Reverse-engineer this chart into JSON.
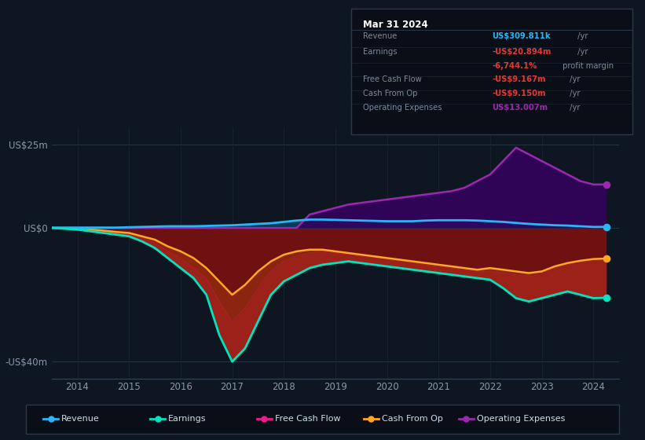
{
  "bg_color": "#0e1621",
  "ylim": [
    -45000000,
    30000000
  ],
  "xlim": [
    2013.5,
    2024.5
  ],
  "legend_items": [
    {
      "label": "Revenue",
      "color": "#29b6f6"
    },
    {
      "label": "Earnings",
      "color": "#00e5c0"
    },
    {
      "label": "Free Cash Flow",
      "color": "#e91e8c"
    },
    {
      "label": "Cash From Op",
      "color": "#ffa726"
    },
    {
      "label": "Operating Expenses",
      "color": "#9c27b0"
    }
  ],
  "info_title": "Mar 31 2024",
  "info_rows": [
    {
      "label": "Revenue",
      "value": "US$309.811k",
      "unit": " /yr",
      "value_color": "#29b6f6",
      "unit_color": "#aabbcc"
    },
    {
      "label": "Earnings",
      "value": "-US$20.894m",
      "unit": " /yr",
      "value_color": "#e53935",
      "unit_color": "#aabbcc"
    },
    {
      "label": "",
      "value": "-6,744.1%",
      "unit": " profit margin",
      "value_color": "#e53935",
      "unit_color": "#aabbcc"
    },
    {
      "label": "Free Cash Flow",
      "value": "-US$9.167m",
      "unit": " /yr",
      "value_color": "#e53935",
      "unit_color": "#aabbcc"
    },
    {
      "label": "Cash From Op",
      "value": "-US$9.150m",
      "unit": " /yr",
      "value_color": "#e53935",
      "unit_color": "#aabbcc"
    },
    {
      "label": "Operating Expenses",
      "value": "US$13.007m",
      "unit": " /yr",
      "value_color": "#9c27b0",
      "unit_color": "#aabbcc"
    }
  ],
  "ytick_vals": [
    25000000,
    0,
    -40000000
  ],
  "ytick_labels": [
    "US$25m",
    "US$0",
    "-US$40m"
  ],
  "xtick_vals": [
    2014,
    2015,
    2016,
    2017,
    2018,
    2019,
    2020,
    2021,
    2022,
    2023,
    2024
  ],
  "rev_color": "#29b6f6",
  "earn_color": "#00e5c0",
  "fcf_color": "#e91e8c",
  "cop_color": "#ffa726",
  "opex_color": "#9c27b0",
  "years": [
    2013.5,
    2014.0,
    2014.25,
    2014.5,
    2014.75,
    2015.0,
    2015.25,
    2015.5,
    2015.75,
    2016.0,
    2016.25,
    2016.5,
    2016.75,
    2017.0,
    2017.25,
    2017.5,
    2017.75,
    2018.0,
    2018.25,
    2018.5,
    2018.75,
    2019.0,
    2019.25,
    2019.5,
    2019.75,
    2020.0,
    2020.25,
    2020.5,
    2020.75,
    2021.0,
    2021.25,
    2021.5,
    2021.75,
    2022.0,
    2022.25,
    2022.5,
    2022.75,
    2023.0,
    2023.25,
    2023.5,
    2023.75,
    2024.0,
    2024.25
  ],
  "revenue": [
    0.1,
    0.1,
    0.1,
    0.1,
    0.1,
    0.2,
    0.3,
    0.4,
    0.5,
    0.5,
    0.5,
    0.6,
    0.7,
    0.8,
    1.0,
    1.2,
    1.4,
    1.8,
    2.2,
    2.5,
    2.5,
    2.4,
    2.3,
    2.2,
    2.1,
    2.0,
    2.0,
    2.0,
    2.2,
    2.3,
    2.3,
    2.3,
    2.2,
    2.0,
    1.8,
    1.5,
    1.2,
    1.0,
    0.8,
    0.7,
    0.5,
    0.3,
    0.31
  ],
  "earnings": [
    0,
    -0.5,
    -1.0,
    -1.5,
    -2.0,
    -2.5,
    -4.0,
    -6.0,
    -9.0,
    -12.0,
    -15.0,
    -20.0,
    -32.0,
    -40.0,
    -36.0,
    -28.0,
    -20.0,
    -16.0,
    -14.0,
    -12.0,
    -11.0,
    -10.5,
    -10.0,
    -10.5,
    -11.0,
    -11.5,
    -12.0,
    -12.5,
    -13.0,
    -13.5,
    -14.0,
    -14.5,
    -15.0,
    -15.5,
    -18.0,
    -21.0,
    -22.0,
    -21.0,
    -20.0,
    -19.0,
    -20.0,
    -21.0,
    -20.894
  ],
  "free_cash_flow": [
    0,
    -0.2,
    -0.5,
    -1.0,
    -1.5,
    -2.0,
    -3.0,
    -4.5,
    -7.0,
    -9.0,
    -12.0,
    -15.0,
    -22.0,
    -28.0,
    -24.0,
    -18.0,
    -13.0,
    -10.0,
    -8.5,
    -7.5,
    -7.0,
    -7.5,
    -8.0,
    -8.5,
    -9.0,
    -9.5,
    -10.0,
    -10.5,
    -11.0,
    -11.5,
    -12.0,
    -12.5,
    -13.0,
    -13.0,
    -13.5,
    -14.0,
    -14.5,
    -14.0,
    -12.0,
    -11.0,
    -10.0,
    -9.5,
    -9.167
  ],
  "cash_from_op": [
    0,
    -0.2,
    -0.4,
    -0.8,
    -1.2,
    -1.5,
    -2.5,
    -3.5,
    -5.5,
    -7.0,
    -9.0,
    -12.0,
    -16.0,
    -20.0,
    -17.0,
    -13.0,
    -10.0,
    -8.0,
    -7.0,
    -6.5,
    -6.5,
    -7.0,
    -7.5,
    -8.0,
    -8.5,
    -9.0,
    -9.5,
    -10.0,
    -10.5,
    -11.0,
    -11.5,
    -12.0,
    -12.5,
    -12.0,
    -12.5,
    -13.0,
    -13.5,
    -13.0,
    -11.5,
    -10.5,
    -9.8,
    -9.3,
    -9.15
  ],
  "op_expenses": [
    0,
    0,
    0,
    0,
    0,
    0,
    0,
    0,
    0,
    0,
    0,
    0,
    0,
    0,
    0,
    0,
    0,
    0,
    0,
    4.0,
    5.0,
    6.0,
    7.0,
    7.5,
    8.0,
    8.5,
    9.0,
    9.5,
    10.0,
    10.5,
    11.0,
    12.0,
    14.0,
    16.0,
    20.0,
    24.0,
    22.0,
    20.0,
    18.0,
    16.0,
    14.0,
    13.0,
    13.007
  ]
}
